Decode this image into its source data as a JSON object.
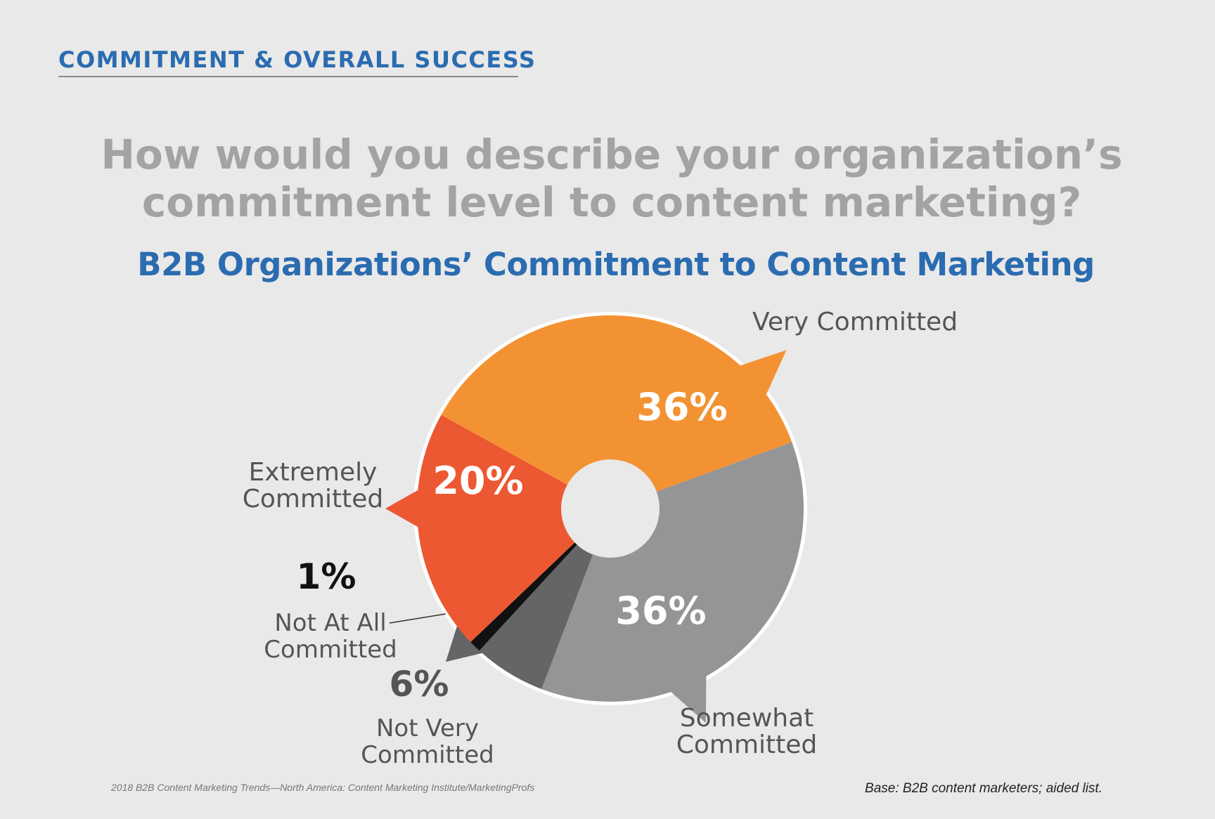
{
  "header": {
    "section_title": "COMMITMENT & OVERALL SUCCESS",
    "question_line1": "How would you describe your organization’s",
    "question_line2": "commitment level to content marketing?"
  },
  "chart_data": {
    "type": "pie",
    "title": "B2B Organizations’ Commitment to Content Marketing",
    "slices": [
      {
        "label_lines": [
          "Very Committed"
        ],
        "value": 36,
        "value_label": "36%",
        "color": "#f39233"
      },
      {
        "label_lines": [
          "Somewhat",
          "Committed"
        ],
        "value": 36,
        "value_label": "36%",
        "color": "#939597"
      },
      {
        "label_lines": [
          "Not Very",
          "Committed"
        ],
        "value": 6,
        "value_label": "6%",
        "color": "#646567"
      },
      {
        "label_lines": [
          "Not At All",
          "Committed"
        ],
        "value": 1,
        "value_label": "1%",
        "color": "#111111"
      },
      {
        "label_lines": [
          "Extremely",
          "Committed"
        ],
        "value": 20,
        "value_label": "20%",
        "color": "#ec5832"
      }
    ],
    "background_color": "#e9e9e9",
    "label_text_color": "#555555",
    "inner_value_color": "#ffffff"
  },
  "footer": {
    "source": "2018 B2B Content Marketing Trends—North America: Content Marketing Institute/MarketingProfs",
    "base": "Base: B2B content marketers; aided list."
  }
}
